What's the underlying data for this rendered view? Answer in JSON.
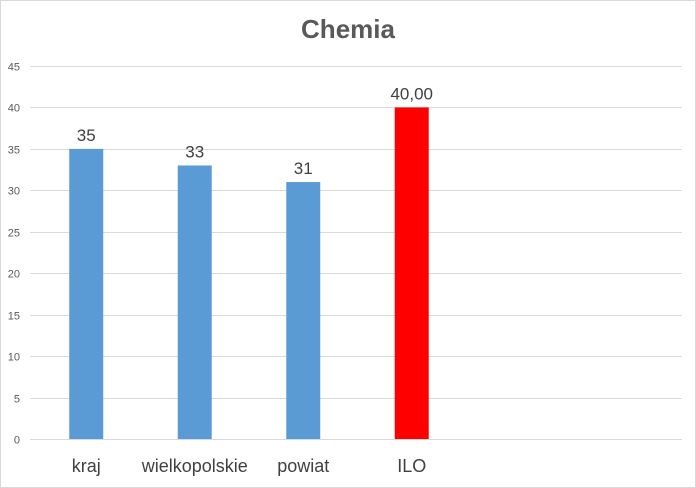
{
  "chart_data": {
    "type": "bar",
    "title": "Chemia",
    "categories": [
      "kraj",
      "wielkopolskie",
      "powiat",
      "ILO"
    ],
    "values": [
      35,
      33,
      31,
      40
    ],
    "data_labels": [
      "35",
      "33",
      "31",
      "40,00"
    ],
    "bar_colors": [
      "#5b9bd5",
      "#5b9bd5",
      "#5b9bd5",
      "#ff0000"
    ],
    "ylim": [
      0,
      45
    ],
    "yticks": [
      0,
      5,
      10,
      15,
      20,
      25,
      30,
      35,
      40,
      45
    ],
    "grid": true,
    "xlabel": "",
    "ylabel": ""
  }
}
